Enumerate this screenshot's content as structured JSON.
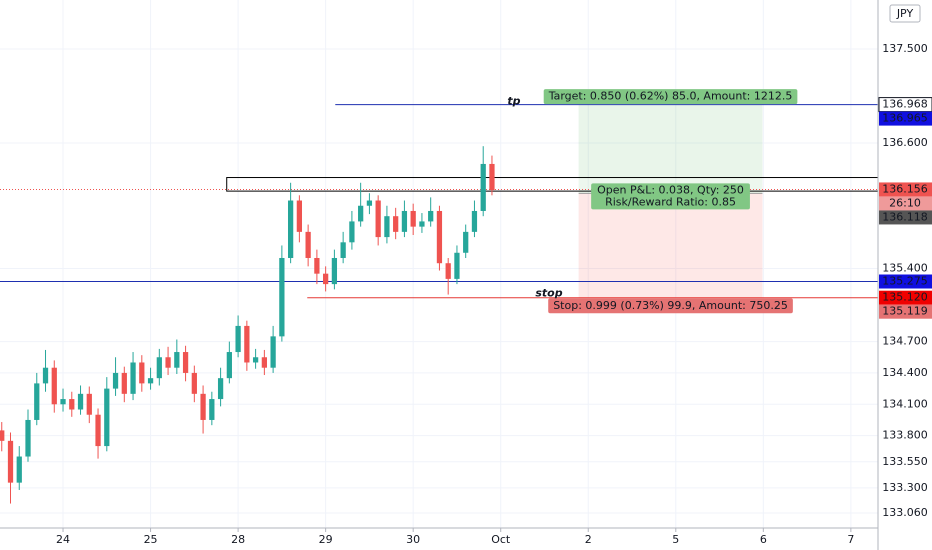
{
  "chart_data": {
    "type": "candlestick",
    "currency": "JPY",
    "up_color": "#26a69a",
    "down_color": "#ef5350",
    "grid": true,
    "xlim": [
      -0.72,
      9.31
    ],
    "ylim": [
      132.916,
      137.969
    ],
    "xticks": [
      {
        "value": 0,
        "label": "24"
      },
      {
        "value": 1,
        "label": "25"
      },
      {
        "value": 2,
        "label": "28"
      },
      {
        "value": 3,
        "label": "29"
      },
      {
        "value": 4,
        "label": "30"
      },
      {
        "value": 5,
        "label": "Oct"
      },
      {
        "value": 6,
        "label": "2"
      },
      {
        "value": 7,
        "label": "5"
      },
      {
        "value": 8,
        "label": "6"
      },
      {
        "value": 9,
        "label": "7"
      }
    ],
    "yticks": [
      {
        "value": 137.5,
        "label": "137.500"
      },
      {
        "value": 136.6,
        "label": "136.600"
      },
      {
        "value": 135.4,
        "label": "135.400"
      },
      {
        "value": 134.7,
        "label": "134.700"
      },
      {
        "value": 134.4,
        "label": "134.400"
      },
      {
        "value": 134.1,
        "label": "134.100"
      },
      {
        "value": 133.8,
        "label": "133.800"
      },
      {
        "value": 133.55,
        "label": "133.550"
      },
      {
        "value": 133.3,
        "label": "133.300"
      },
      {
        "value": 133.06,
        "label": "133.060"
      }
    ],
    "x": [
      -0.7,
      -0.6,
      -0.5,
      -0.4,
      -0.3,
      -0.2,
      -0.1,
      0,
      0.1,
      0.2,
      0.3,
      0.4,
      0.5,
      0.6,
      0.7,
      0.8,
      0.9,
      1,
      1.1,
      1.2,
      1.3,
      1.4,
      1.5,
      1.6,
      1.7,
      1.8,
      1.9,
      2,
      2.1,
      2.2,
      2.3,
      2.4,
      2.5,
      2.6,
      2.7,
      2.8,
      2.9,
      3,
      3.1,
      3.2,
      3.3,
      3.4,
      3.5,
      3.6,
      3.7,
      3.8,
      3.9,
      4,
      4.1,
      4.2,
      4.3,
      4.4,
      4.5,
      4.6,
      4.7,
      4.8,
      4.9
    ],
    "open": [
      133.85,
      133.75,
      133.35,
      133.6,
      133.95,
      134.3,
      134.45,
      134.1,
      134.15,
      134.05,
      134.2,
      134,
      133.7,
      134.25,
      134.4,
      134.2,
      134.5,
      134.3,
      134.35,
      134.55,
      134.45,
      134.6,
      134.4,
      134.2,
      133.95,
      134.15,
      134.35,
      134.6,
      134.85,
      134.5,
      134.55,
      134.45,
      134.75,
      135.5,
      136.05,
      135.75,
      135.5,
      135.35,
      135.25,
      135.5,
      135.65,
      135.85,
      136,
      136.05,
      135.7,
      135.9,
      135.75,
      135.95,
      135.8,
      135.85,
      135.95,
      135.45,
      135.3,
      135.55,
      135.75,
      135.95,
      136.4
    ],
    "high": [
      133.93,
      133.83,
      133.7,
      134.05,
      134.4,
      134.62,
      134.52,
      134.25,
      134.22,
      134.28,
      134.27,
      134.06,
      134.36,
      134.55,
      134.46,
      134.6,
      134.57,
      134.45,
      134.63,
      134.65,
      134.72,
      134.66,
      134.47,
      134.28,
      134.22,
      134.45,
      134.7,
      134.95,
      134.9,
      134.63,
      134.62,
      134.85,
      135.62,
      136.22,
      136.1,
      135.82,
      135.58,
      135.42,
      135.58,
      135.75,
      135.95,
      136.22,
      136.12,
      136.1,
      136,
      135.98,
      136.05,
      136.02,
      135.93,
      136.08,
      136,
      135.5,
      135.62,
      135.82,
      136.05,
      136.57,
      136.48
    ],
    "low": [
      133.65,
      133.15,
      133.28,
      133.55,
      133.9,
      134.22,
      134.02,
      134.03,
      133.98,
      134,
      133.92,
      133.58,
      133.65,
      134.18,
      134.12,
      134.14,
      134.22,
      134.24,
      134.28,
      134.38,
      134.39,
      134.32,
      134.12,
      133.82,
      133.9,
      134.08,
      134.3,
      134.55,
      134.42,
      134.44,
      134.38,
      134.4,
      134.7,
      135.45,
      135.65,
      135.42,
      135.25,
      135.18,
      135.2,
      135.45,
      135.58,
      135.8,
      135.92,
      135.62,
      135.64,
      135.68,
      135.7,
      135.72,
      135.74,
      135.8,
      135.38,
      135.15,
      135.25,
      135.5,
      135.7,
      135.9,
      136.1
    ],
    "close": [
      133.75,
      133.35,
      133.6,
      133.95,
      134.3,
      134.45,
      134.1,
      134.15,
      134.05,
      134.2,
      134,
      133.7,
      134.25,
      134.4,
      134.2,
      134.5,
      134.3,
      134.35,
      134.55,
      134.45,
      134.6,
      134.4,
      134.2,
      133.95,
      134.15,
      134.35,
      134.6,
      134.85,
      134.5,
      134.55,
      134.45,
      134.75,
      135.5,
      136.05,
      135.75,
      135.5,
      135.35,
      135.25,
      135.5,
      135.65,
      135.85,
      136,
      136.05,
      135.7,
      135.9,
      135.75,
      135.95,
      135.8,
      135.85,
      135.95,
      135.45,
      135.3,
      135.55,
      135.75,
      135.95,
      136.4,
      136.15
    ],
    "zone": {
      "top": 136.27,
      "bottom": 136.14,
      "x_start": 1.87
    },
    "price_lines": [
      {
        "name": "tp",
        "value": 136.968,
        "x_start": 3.11,
        "color": "#1e2fb0"
      },
      {
        "value": 135.275,
        "x_start": -0.72,
        "color": "#1e2fb0"
      },
      {
        "name": "stop",
        "value": 135.12,
        "x_start": 2.79,
        "color": "#e53935"
      }
    ],
    "current_price": {
      "value": 136.156,
      "color": "#ef5350",
      "countdown": "26:10"
    },
    "position": {
      "entry": 136.118,
      "target": 136.968,
      "stop": 135.119,
      "x_start": 5.89,
      "x_end": 7.99,
      "target_label": "Target: 0.850 (0.62%) 85.0, Amount: 1212.5",
      "pnl_label": "Open P&L: 0.038, Qty: 250",
      "rr_label": "Risk/Reward Ratio: 0.85",
      "stop_label": "Stop: 0.999 (0.73%) 99.9, Amount: 750.25"
    },
    "axis_badges": [
      {
        "value": 136.968,
        "label": "136.968",
        "color": "#ffffff"
      },
      {
        "value": 136.965,
        "label": "136.965",
        "color": "#1010e0"
      },
      {
        "value": 136.156,
        "label": "136.156",
        "color": "#ef5350"
      },
      {
        "value": 136.118,
        "label": "136.118",
        "color": "#555555"
      },
      {
        "value": 135.275,
        "label": "135.275",
        "color": "#1010e0"
      },
      {
        "value": 135.12,
        "label": "135.120",
        "color": "#f00000"
      },
      {
        "value": 135.119,
        "label": "135.119",
        "color": "#e57373"
      }
    ]
  }
}
